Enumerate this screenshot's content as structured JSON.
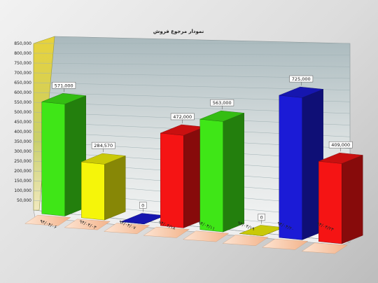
{
  "chart_data": {
    "type": "bar",
    "title": "نمودار مرجوع فروش",
    "xlabel": "",
    "ylabel": "",
    "ylim": [
      0,
      850000
    ],
    "y_ticks": [
      "50,000",
      "100,000",
      "150,000",
      "200,000",
      "250,000",
      "300,000",
      "350,000",
      "400,000",
      "450,000",
      "500,000",
      "550,000",
      "600,000",
      "650,000",
      "700,000",
      "750,000",
      "800,000",
      "850,000"
    ],
    "categories": [
      "۹۴/۰۴/۰۶",
      "۹۴/۰۴/۰۳",
      "۹۴/۰۴/۰۷",
      "۹۴/۰۴/۱۸",
      "۹۴/۰۴/۱۱",
      "۹۴/۰۴/۱۹",
      "۹۴/۰۴/۲۰",
      "۹۴/۰۴/۲۳"
    ],
    "values": [
      571000,
      284570,
      0,
      472000,
      563000,
      0,
      725000,
      409000
    ],
    "value_labels": [
      "571,000",
      "284,570",
      "0",
      "472,000",
      "563,000",
      "0",
      "725,000",
      "409,000"
    ],
    "bar_colors": [
      "#3fe617",
      "#f5f50a",
      "#1b1bd6",
      "#f51414",
      "#3fe617",
      "#f5f50a",
      "#1b1bd6",
      "#f51414"
    ],
    "grid": true,
    "legend": "none"
  }
}
